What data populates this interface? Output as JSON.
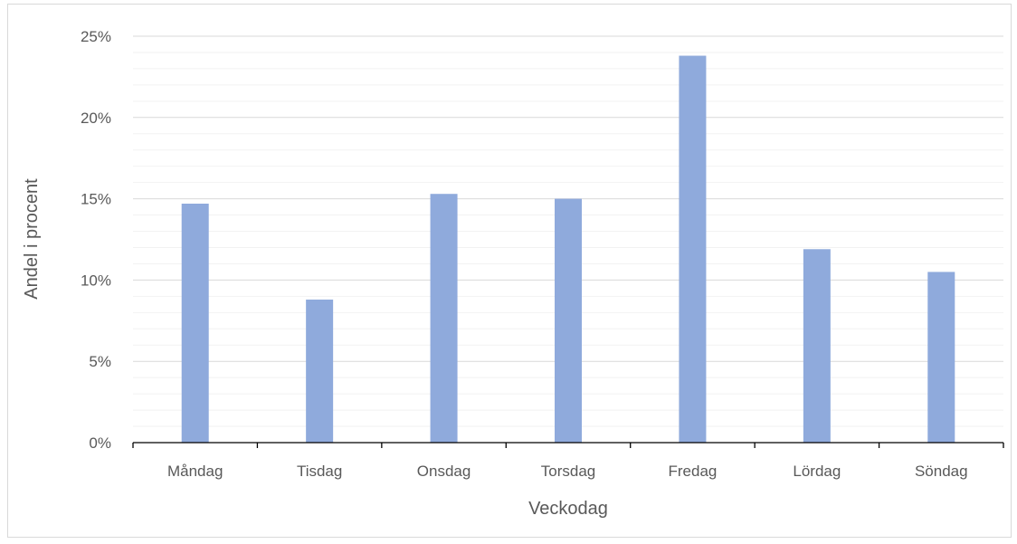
{
  "chart_data": {
    "type": "bar",
    "title": "",
    "xlabel": "Veckodag",
    "ylabel": "Andel i procent",
    "categories": [
      "Måndag",
      "Tisdag",
      "Onsdag",
      "Torsdag",
      "Fredag",
      "Lördag",
      "Söndag"
    ],
    "series": [
      {
        "values": [
          14.7,
          8.8,
          15.3,
          15.0,
          23.8,
          11.9,
          10.5
        ],
        "color": "#8faadc"
      }
    ],
    "ylim": [
      0,
      25
    ],
    "major_ticks": [
      0,
      5,
      10,
      15,
      20,
      25
    ],
    "tick_labels": [
      "0%",
      "5%",
      "10%",
      "15%",
      "20%",
      "25%"
    ],
    "minor_tick_step": 1,
    "grid": true,
    "legend": "none",
    "gridline_color": "#d9d9d9",
    "minor_gridline_color": "#f2f2f2",
    "axis_color": "#000000"
  }
}
